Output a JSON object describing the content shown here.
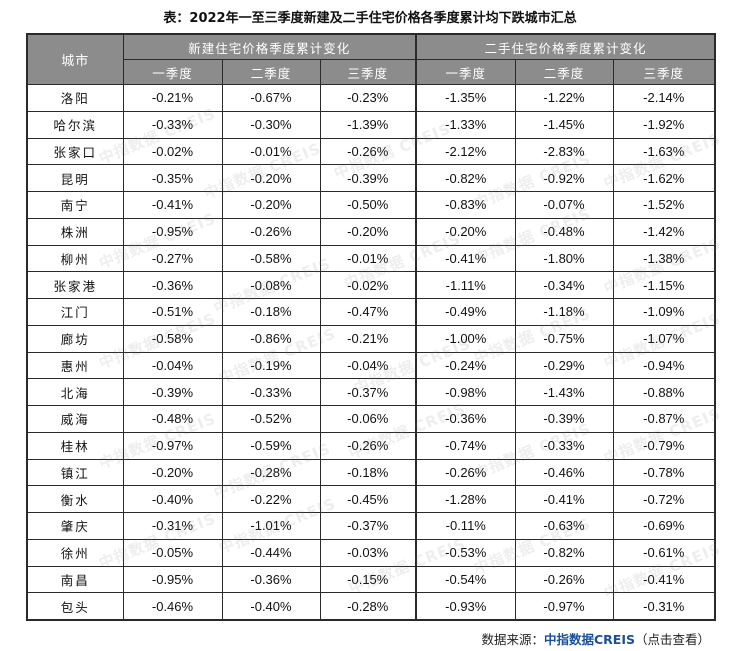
{
  "title": "表：2022年一至三季度新建及二手住宅价格各季度累计均下跌城市汇总",
  "header": {
    "city": "城市",
    "group_new": "新建住宅价格季度累计变化",
    "group_used": "二手住宅价格季度累计变化",
    "quarters": [
      "一季度",
      "二季度",
      "三季度"
    ]
  },
  "rows": [
    {
      "city": "洛阳",
      "new": [
        "-0.21%",
        "-0.67%",
        "-0.23%"
      ],
      "used": [
        "-1.35%",
        "-1.22%",
        "-2.14%"
      ]
    },
    {
      "city": "哈尔滨",
      "new": [
        "-0.33%",
        "-0.30%",
        "-1.39%"
      ],
      "used": [
        "-1.33%",
        "-1.45%",
        "-1.92%"
      ]
    },
    {
      "city": "张家口",
      "new": [
        "-0.02%",
        "-0.01%",
        "-0.26%"
      ],
      "used": [
        "-2.12%",
        "-2.83%",
        "-1.63%"
      ]
    },
    {
      "city": "昆明",
      "new": [
        "-0.35%",
        "-0.20%",
        "-0.39%"
      ],
      "used": [
        "-0.82%",
        "-0.92%",
        "-1.62%"
      ]
    },
    {
      "city": "南宁",
      "new": [
        "-0.41%",
        "-0.20%",
        "-0.50%"
      ],
      "used": [
        "-0.83%",
        "-0.07%",
        "-1.52%"
      ]
    },
    {
      "city": "株洲",
      "new": [
        "-0.95%",
        "-0.26%",
        "-0.20%"
      ],
      "used": [
        "-0.20%",
        "-0.48%",
        "-1.42%"
      ]
    },
    {
      "city": "柳州",
      "new": [
        "-0.27%",
        "-0.58%",
        "-0.01%"
      ],
      "used": [
        "-0.41%",
        "-1.80%",
        "-1.38%"
      ]
    },
    {
      "city": "张家港",
      "new": [
        "-0.36%",
        "-0.08%",
        "-0.02%"
      ],
      "used": [
        "-1.11%",
        "-0.34%",
        "-1.15%"
      ]
    },
    {
      "city": "江门",
      "new": [
        "-0.51%",
        "-0.18%",
        "-0.47%"
      ],
      "used": [
        "-0.49%",
        "-1.18%",
        "-1.09%"
      ]
    },
    {
      "city": "廊坊",
      "new": [
        "-0.58%",
        "-0.86%",
        "-0.21%"
      ],
      "used": [
        "-1.00%",
        "-0.75%",
        "-1.07%"
      ]
    },
    {
      "city": "惠州",
      "new": [
        "-0.04%",
        "-0.19%",
        "-0.04%"
      ],
      "used": [
        "-0.24%",
        "-0.29%",
        "-0.94%"
      ]
    },
    {
      "city": "北海",
      "new": [
        "-0.39%",
        "-0.33%",
        "-0.37%"
      ],
      "used": [
        "-0.98%",
        "-1.43%",
        "-0.88%"
      ]
    },
    {
      "city": "威海",
      "new": [
        "-0.48%",
        "-0.52%",
        "-0.06%"
      ],
      "used": [
        "-0.36%",
        "-0.39%",
        "-0.87%"
      ]
    },
    {
      "city": "桂林",
      "new": [
        "-0.97%",
        "-0.59%",
        "-0.26%"
      ],
      "used": [
        "-0.74%",
        "-0.33%",
        "-0.79%"
      ]
    },
    {
      "city": "镇江",
      "new": [
        "-0.20%",
        "-0.28%",
        "-0.18%"
      ],
      "used": [
        "-0.26%",
        "-0.46%",
        "-0.78%"
      ]
    },
    {
      "city": "衡水",
      "new": [
        "-0.40%",
        "-0.22%",
        "-0.45%"
      ],
      "used": [
        "-1.28%",
        "-0.41%",
        "-0.72%"
      ]
    },
    {
      "city": "肇庆",
      "new": [
        "-0.31%",
        "-1.01%",
        "-0.37%"
      ],
      "used": [
        "-0.11%",
        "-0.63%",
        "-0.69%"
      ]
    },
    {
      "city": "徐州",
      "new": [
        "-0.05%",
        "-0.44%",
        "-0.03%"
      ],
      "used": [
        "-0.53%",
        "-0.82%",
        "-0.61%"
      ]
    },
    {
      "city": "南昌",
      "new": [
        "-0.95%",
        "-0.36%",
        "-0.15%"
      ],
      "used": [
        "-0.54%",
        "-0.26%",
        "-0.41%"
      ]
    },
    {
      "city": "包头",
      "new": [
        "-0.46%",
        "-0.40%",
        "-0.28%"
      ],
      "used": [
        "-0.93%",
        "-0.97%",
        "-0.31%"
      ]
    }
  ],
  "source": {
    "prefix": "数据来源：",
    "brand": "中指数据CREIS",
    "suffix": "（点击查看）"
  },
  "watermark_text": "中指数据 CREIS"
}
